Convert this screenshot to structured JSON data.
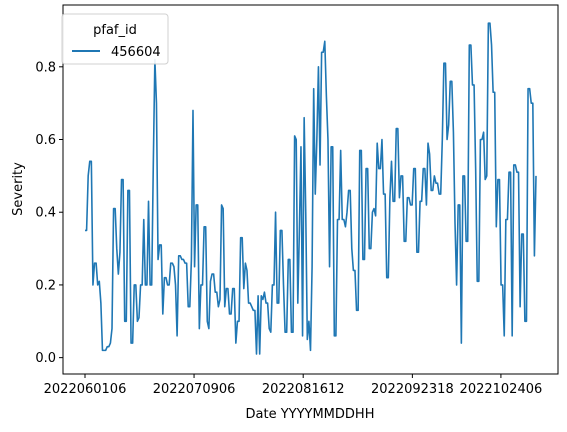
{
  "chart_data": {
    "type": "line",
    "xlabel": "Date YYYYMMDDHH",
    "ylabel": "Severity",
    "ylim": [
      -0.045,
      0.97
    ],
    "yticks": [
      0.0,
      0.2,
      0.4,
      0.6,
      0.8
    ],
    "ytick_labels": [
      "0.0",
      "0.2",
      "0.4",
      "0.6",
      "0.8"
    ],
    "xticks": [
      "2022060106",
      "2022070906",
      "2022081612",
      "2022092318",
      "2022102406"
    ],
    "grid": false,
    "legend": {
      "title": "pfaf_id",
      "placement": "top-left"
    },
    "series_color": "#1f77b4",
    "series": [
      {
        "name": "456604",
        "values": [
          0.35,
          0.35,
          0.5,
          0.54,
          0.54,
          0.2,
          0.26,
          0.26,
          0.2,
          0.21,
          0.15,
          0.02,
          0.02,
          0.02,
          0.03,
          0.03,
          0.04,
          0.08,
          0.41,
          0.41,
          0.3,
          0.23,
          0.29,
          0.49,
          0.49,
          0.1,
          0.1,
          0.46,
          0.46,
          0.04,
          0.04,
          0.2,
          0.2,
          0.1,
          0.11,
          0.2,
          0.2,
          0.38,
          0.2,
          0.2,
          0.43,
          0.2,
          0.2,
          0.53,
          0.82,
          0.7,
          0.27,
          0.31,
          0.31,
          0.12,
          0.22,
          0.22,
          0.2,
          0.2,
          0.26,
          0.26,
          0.25,
          0.2,
          0.06,
          0.28,
          0.28,
          0.27,
          0.27,
          0.26,
          0.26,
          0.14,
          0.14,
          0.27,
          0.68,
          0.25,
          0.42,
          0.42,
          0.08,
          0.2,
          0.2,
          0.36,
          0.36,
          0.1,
          0.08,
          0.21,
          0.23,
          0.23,
          0.18,
          0.18,
          0.14,
          0.16,
          0.42,
          0.41,
          0.14,
          0.19,
          0.19,
          0.12,
          0.12,
          0.19,
          0.19,
          0.04,
          0.1,
          0.1,
          0.33,
          0.33,
          0.19,
          0.26,
          0.24,
          0.15,
          0.15,
          0.14,
          0.13,
          0.13,
          0.01,
          0.17,
          0.01,
          0.17,
          0.16,
          0.18,
          0.15,
          0.15,
          0.08,
          0.07,
          0.2,
          0.2,
          0.4,
          0.15,
          0.15,
          0.35,
          0.35,
          0.2,
          0.07,
          0.07,
          0.27,
          0.27,
          0.07,
          0.07,
          0.61,
          0.6,
          0.15,
          0.35,
          0.58,
          0.06,
          0.66,
          0.4,
          0.05,
          0.1,
          0.02,
          0.25,
          0.74,
          0.45,
          0.6,
          0.8,
          0.53,
          0.84,
          0.84,
          0.87,
          0.72,
          0.6,
          0.25,
          0.58,
          0.58,
          0.06,
          0.06,
          0.38,
          0.38,
          0.57,
          0.38,
          0.38,
          0.36,
          0.4,
          0.46,
          0.46,
          0.3,
          0.24,
          0.24,
          0.13,
          0.13,
          0.57,
          0.57,
          0.27,
          0.27,
          0.52,
          0.52,
          0.3,
          0.3,
          0.4,
          0.41,
          0.39,
          0.59,
          0.52,
          0.52,
          0.6,
          0.45,
          0.45,
          0.22,
          0.22,
          0.44,
          0.54,
          0.43,
          0.43,
          0.63,
          0.63,
          0.44,
          0.5,
          0.5,
          0.32,
          0.32,
          0.44,
          0.44,
          0.42,
          0.42,
          0.52,
          0.52,
          0.29,
          0.29,
          0.43,
          0.43,
          0.52,
          0.52,
          0.42,
          0.59,
          0.56,
          0.46,
          0.46,
          0.5,
          0.48,
          0.48,
          0.45,
          0.45,
          0.6,
          0.81,
          0.81,
          0.6,
          0.64,
          0.76,
          0.76,
          0.62,
          0.37,
          0.2,
          0.42,
          0.42,
          0.04,
          0.5,
          0.5,
          0.32,
          0.32,
          0.86,
          0.86,
          0.75,
          0.75,
          0.52,
          0.21,
          0.21,
          0.6,
          0.6,
          0.62,
          0.49,
          0.5,
          0.92,
          0.92,
          0.86,
          0.73,
          0.73,
          0.36,
          0.49,
          0.49,
          0.2,
          0.2,
          0.06,
          0.38,
          0.38,
          0.51,
          0.51,
          0.06,
          0.53,
          0.53,
          0.51,
          0.51,
          0.14,
          0.34,
          0.34,
          0.1,
          0.1,
          0.74,
          0.74,
          0.7,
          0.7,
          0.28,
          0.5
        ]
      }
    ]
  }
}
